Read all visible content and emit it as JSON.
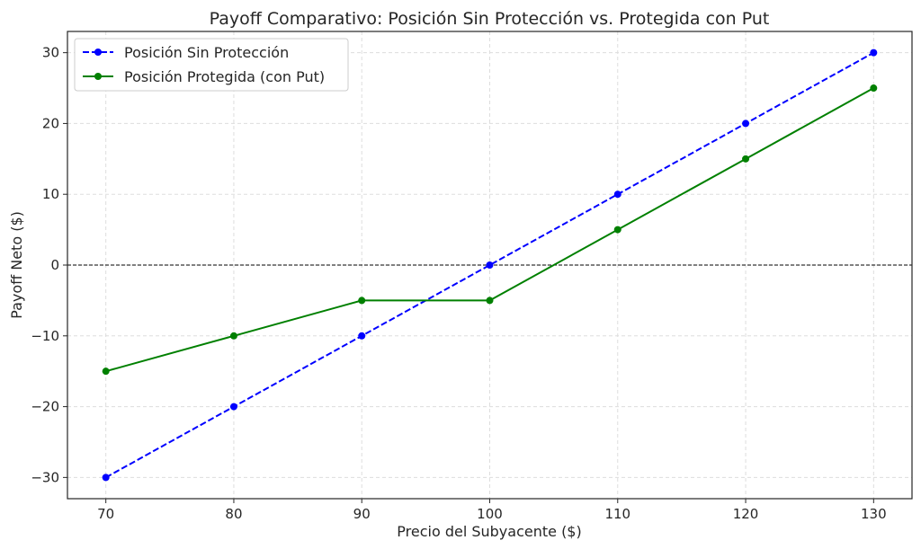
{
  "chart_data": {
    "type": "line",
    "title": "Payoff Comparativo: Posición Sin Protección vs. Protegida con Put",
    "xlabel": "Precio del Subyacente ($)",
    "ylabel": "Payoff Neto ($)",
    "x": [
      70,
      80,
      90,
      100,
      110,
      120,
      130
    ],
    "xlim": [
      67,
      133
    ],
    "ylim": [
      -33,
      33
    ],
    "xticks": [
      70,
      80,
      90,
      100,
      110,
      120,
      130
    ],
    "yticks": [
      -30,
      -20,
      -10,
      0,
      10,
      20,
      30
    ],
    "ytick_labels": [
      "−30",
      "−20",
      "−10",
      "0",
      "10",
      "20",
      "30"
    ],
    "grid": true,
    "reference_line": {
      "y": 0,
      "style": "dashed",
      "color": "#000000"
    },
    "legend_position": "top-left",
    "series": [
      {
        "name": "Posición Sin Protección",
        "values": [
          -30,
          -20,
          -10,
          0,
          10,
          20,
          30
        ],
        "color": "#0000ff",
        "style": "dashed",
        "marker": "circle"
      },
      {
        "name": "Posición Protegida (con Put)",
        "values": [
          -15,
          -10,
          -5,
          -5,
          5,
          15,
          25
        ],
        "color": "#008000",
        "style": "solid",
        "marker": "circle"
      }
    ]
  }
}
